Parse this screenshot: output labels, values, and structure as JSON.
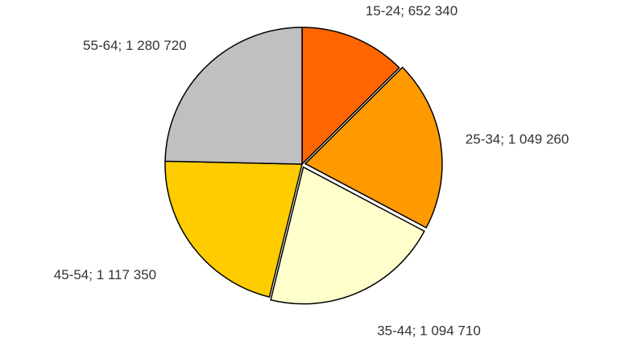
{
  "chart_data": {
    "type": "pie",
    "categories": [
      "15-24",
      "25-34",
      "35-44",
      "45-54",
      "55-64"
    ],
    "values": [
      652340,
      1049260,
      1094710,
      1117350,
      1280720
    ],
    "value_labels": [
      "15-24; 652 340",
      "25-34; 1 049 260",
      "35-44; 1 094 710",
      "45-54; 1 117 350",
      "55-64; 1 280 720"
    ],
    "colors": [
      "#ff6600",
      "#ff9900",
      "#ffffcc",
      "#ffcc00",
      "#c0c0c0"
    ]
  }
}
